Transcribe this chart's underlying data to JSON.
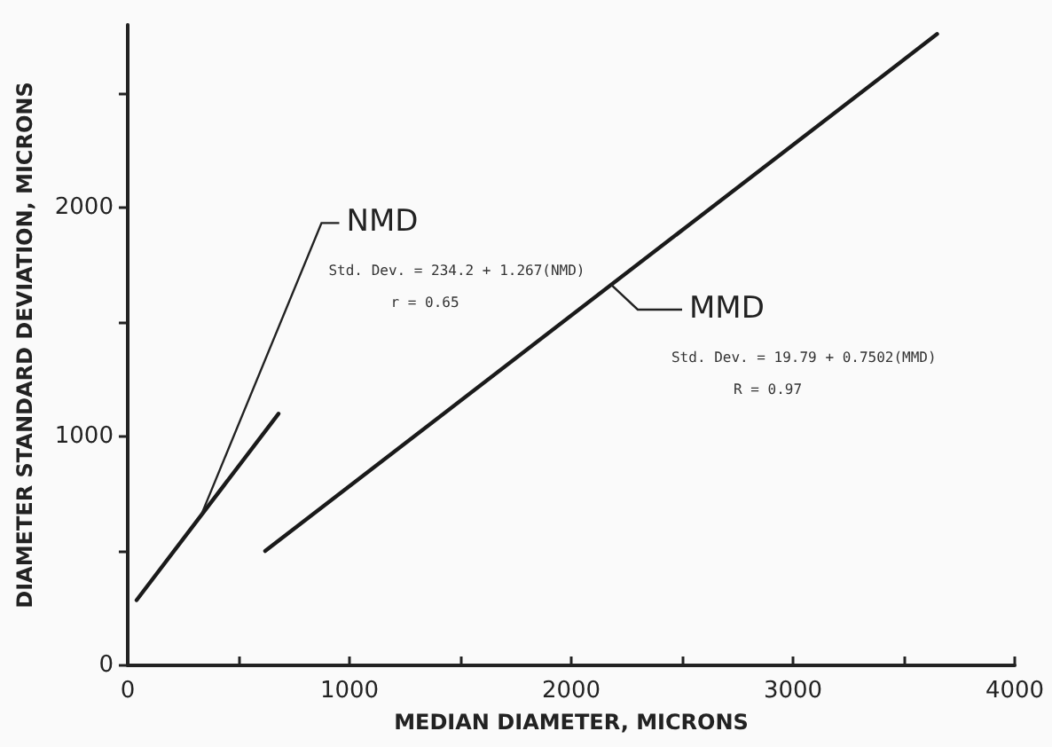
{
  "chart_data": {
    "type": "line",
    "xlabel": "MEDIAN DIAMETER, MICRONS",
    "ylabel": "DIAMETER STANDARD DEVIATION, MICRONS",
    "series": [
      {
        "color": "#1a1a1a",
        "x": [
          40,
          680
        ],
        "values": [
          285,
          1100
        ]
      },
      {
        "color": "#1a1a1a",
        "x": [
          620,
          3650
        ],
        "values": [
          500,
          2760
        ]
      }
    ],
    "annotations": [
      {
        "text": "NMD",
        "x": 330,
        "y": 654
      },
      "Std. Dev. = 234.2 + 1.267(NMD)",
      "r = 0.65",
      {
        "text": "MMD",
        "x": 2180,
        "y": 1664
      },
      "Std. Dev. = 19.79 + 0.7502(MMD)",
      "R = 0.97"
    ],
    "xlim": [
      0,
      4000
    ],
    "ylim": [
      0,
      2800
    ],
    "xticks": [
      0,
      {
        "value": 500,
        "label": null
      },
      1000,
      {
        "value": 1500,
        "label": null
      },
      2000,
      {
        "value": 2500,
        "label": null
      },
      3000,
      {
        "value": 3500,
        "label": null
      },
      4000
    ],
    "yticks": [
      0,
      {
        "value": 500,
        "label": null
      },
      1000,
      {
        "value": 1500,
        "label": null
      },
      2000,
      {
        "value": 2500,
        "label": null
      }
    ]
  }
}
